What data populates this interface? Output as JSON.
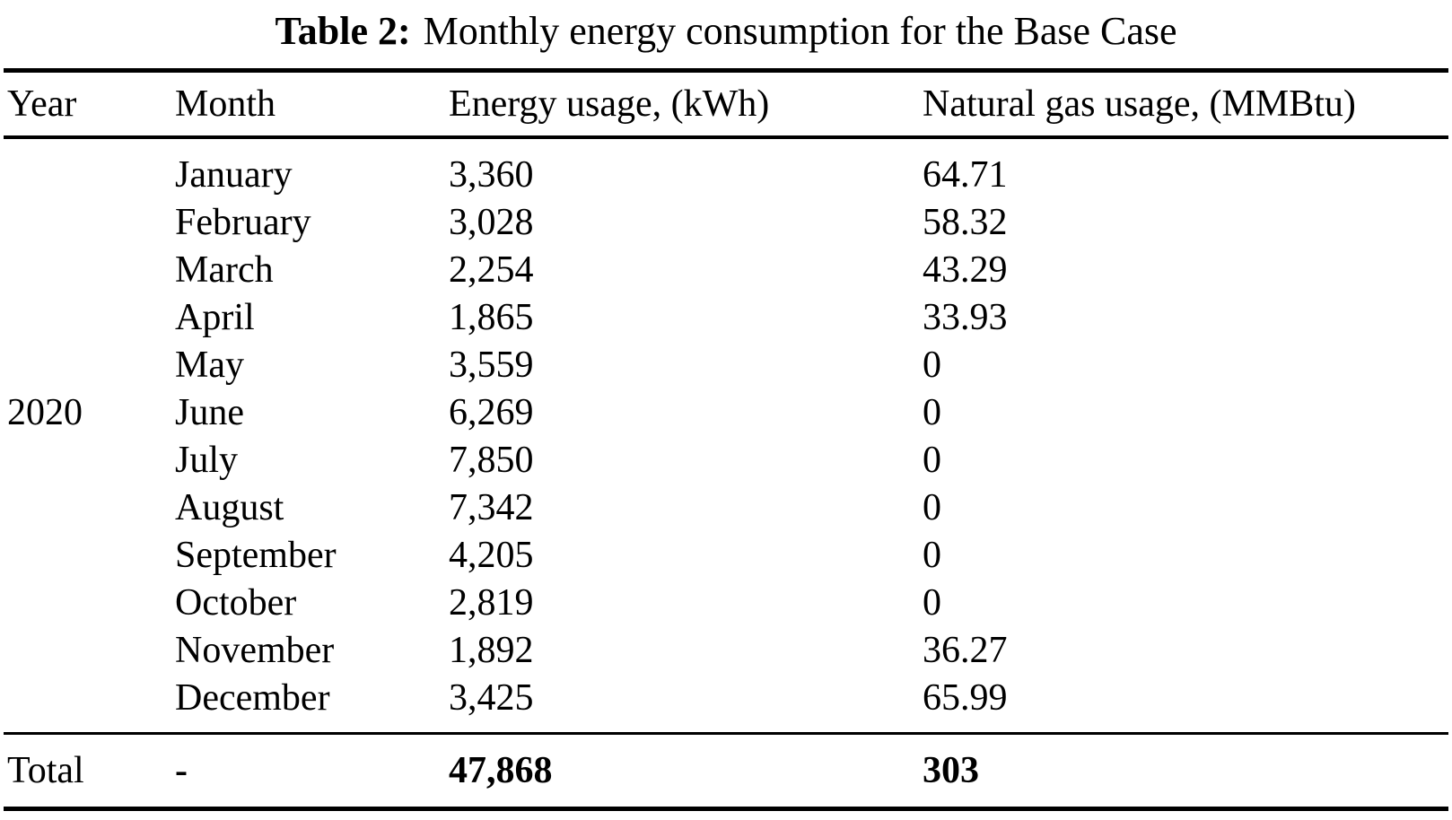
{
  "caption": {
    "label": "Table 2:",
    "title": "Monthly energy consumption for the Base Case"
  },
  "table": {
    "headers": {
      "year": "Year",
      "month": "Month",
      "energy": "Energy usage, (kWh)",
      "gas": "Natural gas usage, (MMBtu)"
    },
    "year_label": "2020",
    "rows": [
      {
        "month": "January",
        "energy": "3,360",
        "gas": "64.71"
      },
      {
        "month": "February",
        "energy": "3,028",
        "gas": "58.32"
      },
      {
        "month": "March",
        "energy": "2,254",
        "gas": "43.29"
      },
      {
        "month": "April",
        "energy": "1,865",
        "gas": "33.93"
      },
      {
        "month": "May",
        "energy": "3,559",
        "gas": "0"
      },
      {
        "month": "June",
        "energy": "6,269",
        "gas": "0"
      },
      {
        "month": "July",
        "energy": "7,850",
        "gas": "0"
      },
      {
        "month": "August",
        "energy": "7,342",
        "gas": "0"
      },
      {
        "month": "September",
        "energy": "4,205",
        "gas": "0"
      },
      {
        "month": "October",
        "energy": "2,819",
        "gas": "0"
      },
      {
        "month": "November",
        "energy": "1,892",
        "gas": "36.27"
      },
      {
        "month": "December",
        "energy": "3,425",
        "gas": "65.99"
      }
    ],
    "total": {
      "label": "Total",
      "month": "-",
      "energy": "47,868",
      "gas": "303"
    }
  }
}
